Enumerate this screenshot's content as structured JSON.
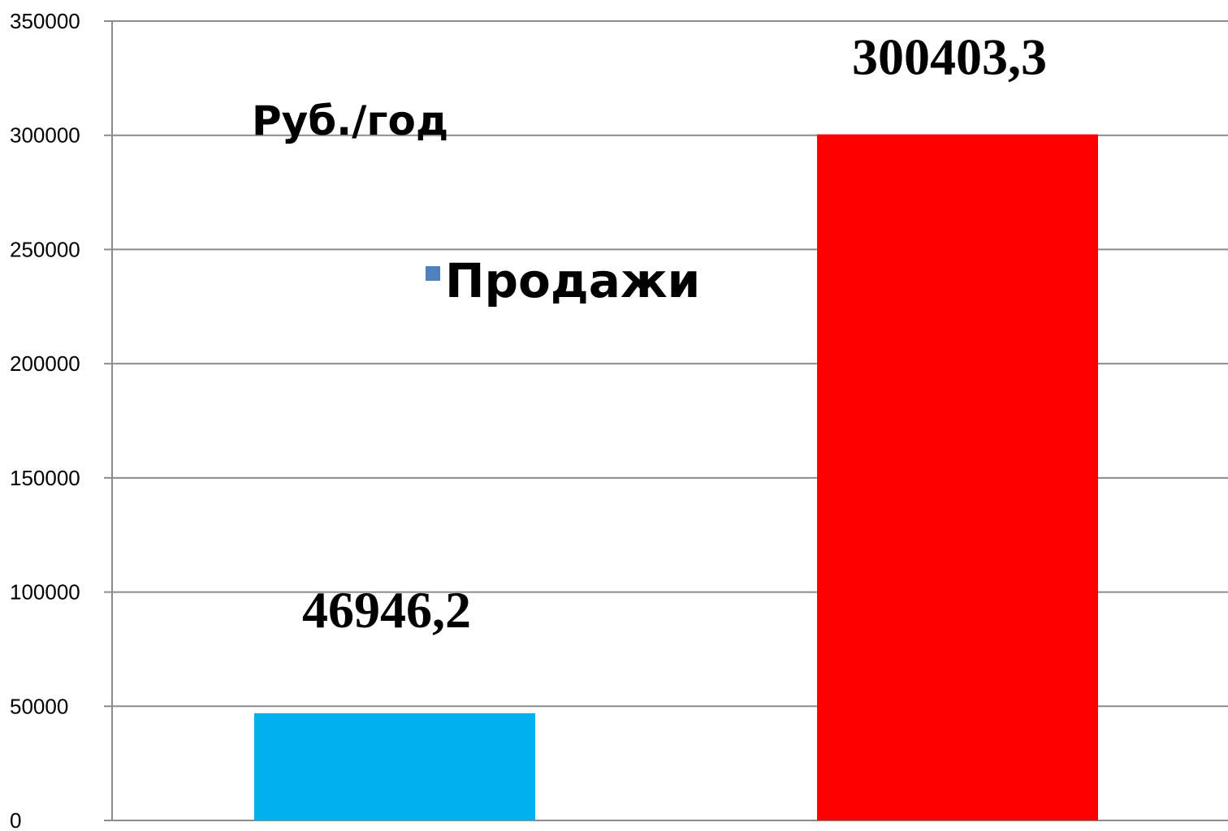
{
  "chart_data": {
    "type": "bar",
    "title": "",
    "xlabel": "",
    "ylabel": "",
    "unit_label": "Руб./год",
    "ylim": [
      0,
      350000
    ],
    "yticks": [
      0,
      50000,
      100000,
      150000,
      200000,
      250000,
      300000,
      350000
    ],
    "ytick_labels": [
      "0",
      "50000",
      "100000",
      "150000",
      "200000",
      "250000",
      "300000",
      "350000"
    ],
    "grid": true,
    "legend": {
      "position": "top-left",
      "entries": [
        {
          "label": "Продажи",
          "color": "#4F81BD"
        }
      ]
    },
    "series": [
      {
        "name": "Продажи",
        "values": [
          46946.2,
          300403.3
        ],
        "colors": [
          "#00B0F0",
          "#FF0000"
        ],
        "data_labels": [
          "46946,2",
          "300403,3"
        ]
      }
    ]
  }
}
